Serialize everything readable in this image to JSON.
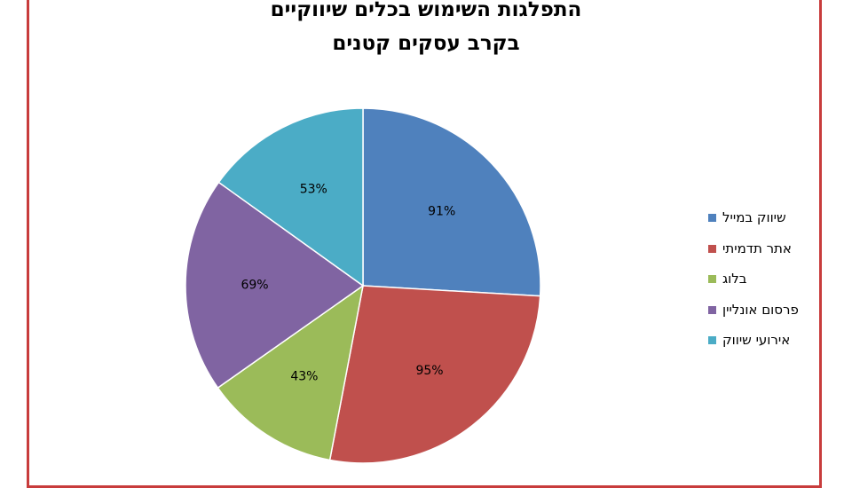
{
  "chart_data": {
    "type": "pie",
    "title_lines": [
      "התפלגות השימוש בכלים שיווקיים",
      "בקרב עסקים קטנים"
    ],
    "categories": [
      "שיווק במייל",
      "אתר תדמיתי",
      "בלוג",
      "פרסום אונליין",
      "אירועי שיווק"
    ],
    "values": [
      91,
      95,
      43,
      69,
      53
    ],
    "data_labels": [
      "91%",
      "95%",
      "43%",
      "69%",
      "53%"
    ],
    "colors": [
      "#4f81bd",
      "#c0504d",
      "#9bbb59",
      "#8064a2",
      "#4bacc6"
    ],
    "start_angle_deg": 0,
    "direction": "clockwise",
    "legend_position": "right"
  }
}
